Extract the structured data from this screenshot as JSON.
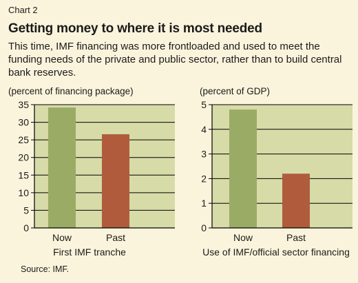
{
  "header": {
    "kicker": "Chart 2",
    "title": "Getting money to where it is most needed",
    "subtitle": "This time, IMF financing was more frontloaded and used to meet the funding needs of the private and public sector, rather than to build central bank reserves."
  },
  "colors": {
    "background": "#fbf4dc",
    "plot_background": "#d7dba7",
    "now": "#9aab66",
    "past": "#b05c3c"
  },
  "chart_data": [
    {
      "type": "bar",
      "ylabel": "(percent of financing package)",
      "xlabel": "First IMF tranche",
      "categories": [
        "Now",
        "Past"
      ],
      "values": [
        34.2,
        26.6
      ],
      "ylim": [
        0,
        35
      ],
      "yticks": [
        0,
        5,
        10,
        15,
        20,
        25,
        30,
        35
      ],
      "grid": true
    },
    {
      "type": "bar",
      "ylabel": "(percent of GDP)",
      "xlabel": "Use of IMF/official sector financing",
      "categories": [
        "Now",
        "Past"
      ],
      "values": [
        4.8,
        2.2
      ],
      "ylim": [
        0,
        5
      ],
      "yticks": [
        0,
        1,
        2,
        3,
        4,
        5
      ],
      "grid": true
    }
  ],
  "footer": {
    "source": "Source: IMF."
  }
}
